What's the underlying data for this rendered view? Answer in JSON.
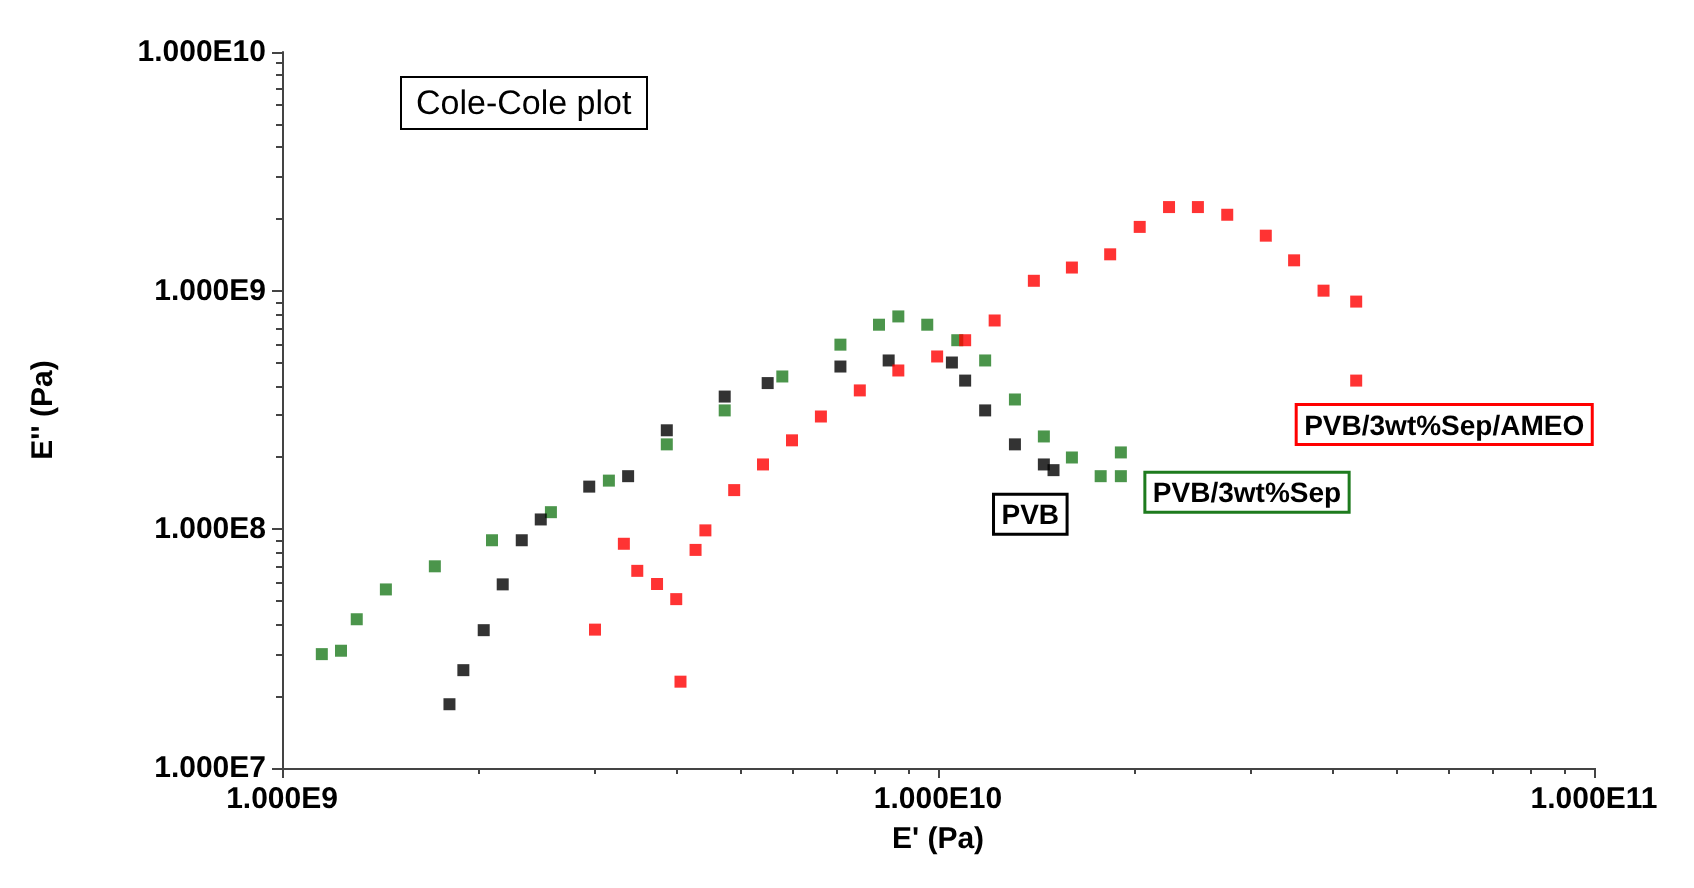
{
  "chart_data": {
    "type": "scatter",
    "title": "Cole-Cole plot",
    "xlabel": "E' (Pa)",
    "ylabel": "E'' (Pa)",
    "log": "xy",
    "grid": false,
    "legend": false,
    "marker": "square",
    "xlim": [
      1000000000,
      100000000000
    ],
    "ylim": [
      10000000,
      10000000000
    ],
    "xticks": [
      {
        "value": 1000000000,
        "label": "1.000E9"
      },
      {
        "value": 10000000000,
        "label": "1.000E10"
      },
      {
        "value": 100000000000,
        "label": "1.000E11"
      }
    ],
    "yticks": [
      {
        "value": 10000000,
        "label": "1.000E7"
      },
      {
        "value": 100000000,
        "label": "1.000E8"
      },
      {
        "value": 1000000000,
        "label": "1.000E9"
      },
      {
        "value": 10000000000,
        "label": "1.000E10"
      }
    ],
    "series": [
      {
        "name": "PVB/3wt%Sep",
        "color": "#1e7b1e",
        "x": [
          1150000000.0,
          1230000000.0,
          1300000000.0,
          1440000000.0,
          1710000000.0,
          2090000000.0,
          2570000000.0,
          3150000000.0,
          3860000000.0,
          4730000000.0,
          5790000000.0,
          7100000000.0,
          8130000000.0,
          8700000000.0,
          9630000000.0,
          10700000000.0,
          11800000000.0,
          13100000000.0,
          14500000000.0,
          16000000000.0,
          17700000000.0,
          19000000000.0,
          19000000000.0
        ],
        "values": [
          30000000.0,
          31000000.0,
          42000000.0,
          56000000.0,
          70000000.0,
          90000000.0,
          118000000.0,
          160000000.0,
          227000000.0,
          315000000.0,
          437000000.0,
          594000000.0,
          720000000.0,
          780000000.0,
          720000000.0,
          620000000.0,
          510000000.0,
          350000000.0,
          245000000.0,
          200000000.0,
          167000000.0,
          167000000.0,
          210000000.0
        ]
      },
      {
        "name": "PVB",
        "color": "#000000",
        "x": [
          1800000000.0,
          1890000000.0,
          2030000000.0,
          2170000000.0,
          2320000000.0,
          2480000000.0,
          2940000000.0,
          3370000000.0,
          3860000000.0,
          4730000000.0,
          5500000000.0,
          7100000000.0,
          8410000000.0,
          10500000000.0,
          11000000000.0,
          11800000000.0,
          13100000000.0,
          14500000000.0,
          15000000000.0
        ],
        "values": [
          18500000.0,
          25700000.0,
          37800000.0,
          58800000.0,
          90000000.0,
          110000000.0,
          151000000.0,
          167000000.0,
          260000000.0,
          360000000.0,
          410000000.0,
          481000000.0,
          510000000.0,
          500000000.0,
          420000000.0,
          315000000.0,
          227000000.0,
          187000000.0,
          177000000.0
        ]
      },
      {
        "name": "PVB/3wt%Sep/AMEO",
        "color": "#ff0000",
        "x": [
          3000000000.0,
          4050000000.0,
          3320000000.0,
          3480000000.0,
          3730000000.0,
          3990000000.0,
          4270000000.0,
          4420000000.0,
          4890000000.0,
          5410000000.0,
          5990000000.0,
          6630000000.0,
          7600000000.0,
          8700000000.0,
          9970000000.0,
          11000000000.0,
          12200000000.0,
          14000000000.0,
          16000000000.0,
          18300000000.0,
          20300000000.0,
          22500000000.0,
          24900000000.0,
          27600000000.0,
          31600000000.0,
          34900000000.0,
          38700000000.0,
          43400000000.0,
          43400000000.0
        ],
        "values": [
          38000000.0,
          23000000.0,
          87000000.0,
          67000000.0,
          59000000.0,
          51000000.0,
          82000000.0,
          99000000.0,
          146000000.0,
          187000000.0,
          236000000.0,
          297000000.0,
          382000000.0,
          463000000.0,
          530000000.0,
          620000000.0,
          750000000.0,
          1100000000.0,
          1250000000.0,
          1420000000.0,
          1850000000.0,
          2240000000.0,
          2240000000.0,
          2080000000.0,
          1700000000.0,
          1340000000.0,
          1000000000.0,
          900000000.0,
          420000000.0
        ]
      }
    ]
  }
}
